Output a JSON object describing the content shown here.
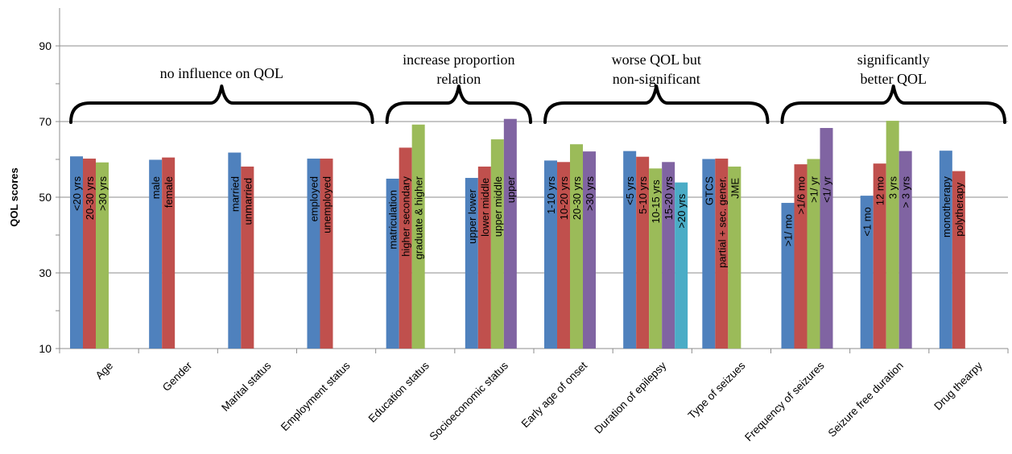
{
  "chart_data": {
    "type": "bar",
    "ylabel": "QOL scores",
    "yticks": [
      10,
      30,
      50,
      70,
      90
    ],
    "ylim": [
      10,
      100
    ],
    "grid": true,
    "colors": [
      "#4f81bd",
      "#c0504d",
      "#9bbb59",
      "#8064a2",
      "#4bacc6"
    ],
    "groups": [
      {
        "category": "Age",
        "bars": [
          {
            "label": "<20 yrs",
            "value": 60.8
          },
          {
            "label": "20-30 yrs",
            "value": 60.2
          },
          {
            "label": ">30 yrs",
            "value": 59.2
          }
        ]
      },
      {
        "category": "Gender",
        "bars": [
          {
            "label": "male",
            "value": 59.9
          },
          {
            "label": "female",
            "value": 60.5
          }
        ]
      },
      {
        "category": "Marital status",
        "bars": [
          {
            "label": "married",
            "value": 61.8
          },
          {
            "label": "unmarried",
            "value": 58.1
          }
        ]
      },
      {
        "category": "Employment status",
        "bars": [
          {
            "label": "employed",
            "value": 60.2
          },
          {
            "label": "unemployed",
            "value": 60.2
          }
        ]
      },
      {
        "category": "Education status",
        "bars": [
          {
            "label": "matriculation",
            "value": 54.9
          },
          {
            "label": "higher secondary",
            "value": 63.1
          },
          {
            "label": "graduate & higher",
            "value": 69.2
          }
        ]
      },
      {
        "category": "Socioeconomic status",
        "bars": [
          {
            "label": "upper lower",
            "value": 55.1
          },
          {
            "label": "lower middle",
            "value": 58.1
          },
          {
            "label": "upper middle",
            "value": 65.3
          },
          {
            "label": "upper",
            "value": 70.7
          }
        ]
      },
      {
        "category": "Early age of onset",
        "bars": [
          {
            "label": "1-10 yrs",
            "value": 59.7
          },
          {
            "label": "10-20 yrs",
            "value": 59.3
          },
          {
            "label": "20-30 yrs",
            "value": 64.0
          },
          {
            "label": ">30 yrs",
            "value": 62.1
          }
        ]
      },
      {
        "category": "Duration of epilepsy",
        "bars": [
          {
            "label": "<5 yrs",
            "value": 62.2
          },
          {
            "label": "5-10 yrs",
            "value": 60.7
          },
          {
            "label": "10-15 yrs",
            "value": 57.6
          },
          {
            "label": "15-20 yrs",
            "value": 59.3
          },
          {
            "label": ">20 yrs",
            "value": 53.9
          }
        ]
      },
      {
        "category": "Type of seizues",
        "bars": [
          {
            "label": "GTCS",
            "value": 60.1
          },
          {
            "label": "partial + sec. gener.",
            "value": 60.2
          },
          {
            "label": "JME",
            "value": 58.1
          }
        ]
      },
      {
        "category": "Frequency of seizures",
        "bars": [
          {
            "label": ">1/ mo",
            "value": 48.5
          },
          {
            "label": ">1/6 mo",
            "value": 58.7
          },
          {
            "label": ">1/ yr",
            "value": 60.1
          },
          {
            "label": "<1/ yr",
            "value": 68.3
          }
        ]
      },
      {
        "category": "Seizure free duration",
        "bars": [
          {
            "label": "<1 mo",
            "value": 50.4
          },
          {
            "label": "12 mo",
            "value": 58.9
          },
          {
            "label": "3 yrs",
            "value": 70.2
          },
          {
            "label": "> 3 yrs",
            "value": 62.2
          }
        ]
      },
      {
        "category": "Drug thearpy",
        "bars": [
          {
            "label": "monotherapy",
            "value": 62.3
          },
          {
            "label": "polytherapy",
            "value": 56.9
          }
        ]
      }
    ],
    "annotations": [
      {
        "lines": [
          "no influence on QOL"
        ],
        "from_group": 0,
        "to_group": 3
      },
      {
        "lines": [
          "increase proportion",
          "relation"
        ],
        "from_group": 4,
        "to_group": 5
      },
      {
        "lines": [
          "worse QOL but",
          "non-significant"
        ],
        "from_group": 6,
        "to_group": 8
      },
      {
        "lines": [
          "significantly",
          "better QOL"
        ],
        "from_group": 9,
        "to_group": 11
      }
    ]
  }
}
